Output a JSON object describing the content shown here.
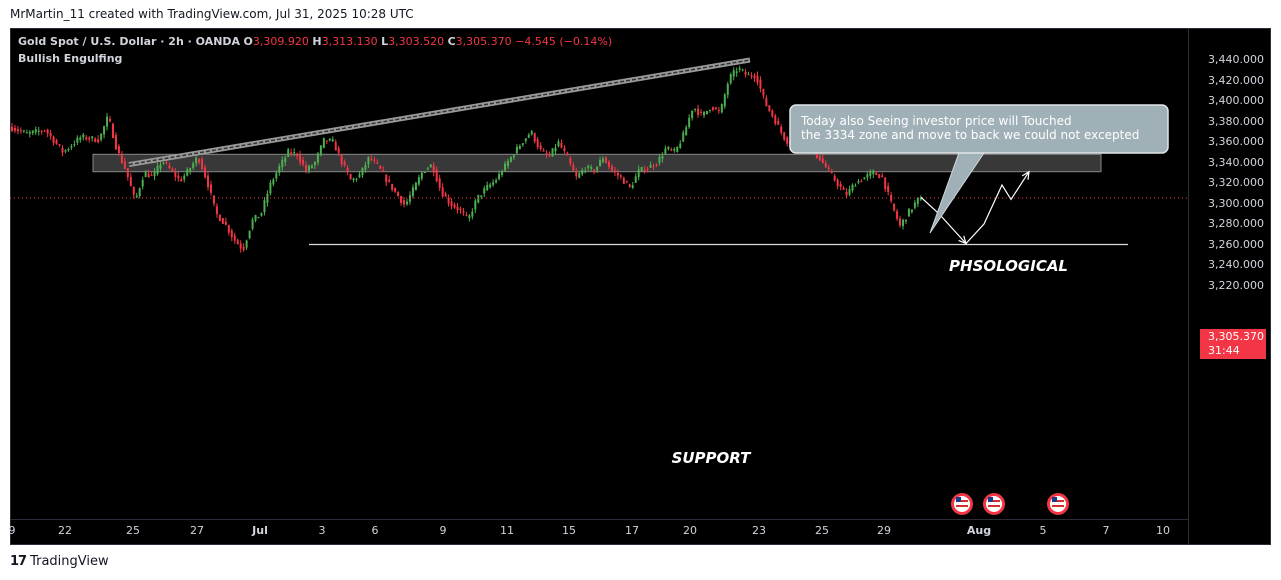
{
  "caption": "MrMartin_11 created with TradingView.com, Jul 31, 2025 10:28 UTC",
  "header": {
    "title": "Gold Spot / U.S. Dollar · 2h · OANDA",
    "o_label": "O",
    "o_value": "3,309.920",
    "h_label": "H",
    "h_value": "3,313.130",
    "l_label": "L",
    "l_value": "3,303.520",
    "c_label": "C",
    "c_value": "3,305.370",
    "change": "−4.545 (−0.14%)",
    "indicator": "Bullish Engulfing"
  },
  "price_tag": {
    "price": "3,305.370",
    "countdown": "31:44"
  },
  "annotations": {
    "callout": "Today also Seeing investor price will Touched the 3334 zone and move to back we could not excepted",
    "zone_label": "PHSOLOGICAL",
    "support_label": "SUPPORT"
  },
  "brand": {
    "logo": "17",
    "name": "TradingView"
  },
  "colors": {
    "up": "#26a69a",
    "up_candle": "#4caf50",
    "down": "#f23645",
    "background": "#000000",
    "text": "#d1d4dc"
  },
  "chart_data": {
    "type": "candlestick",
    "symbol": "XAUUSD",
    "timeframe": "2h",
    "yticks": [
      "3,440.000",
      "3,420.000",
      "3,400.000",
      "3,380.000",
      "3,360.000",
      "3,340.000",
      "3,320.000",
      "3,300.000",
      "3,280.000",
      "3,260.000",
      "3,240.000",
      "3,220.000"
    ],
    "xticks": [
      "9",
      "22",
      "25",
      "27",
      "Jul",
      "3",
      "6",
      "9",
      "11",
      "15",
      "17",
      "20",
      "23",
      "25",
      "29",
      "Aug",
      "5",
      "7",
      "10"
    ],
    "ylim": [
      3215,
      3452
    ],
    "price_path": [
      [
        0,
        3375
      ],
      [
        2,
        3368
      ],
      [
        4,
        3372
      ],
      [
        6,
        3350
      ],
      [
        8,
        3365
      ],
      [
        10,
        3362
      ],
      [
        11,
        3385
      ],
      [
        12,
        3352
      ],
      [
        13,
        3332
      ],
      [
        14,
        3302
      ],
      [
        15,
        3330
      ],
      [
        16,
        3326
      ],
      [
        17,
        3342
      ],
      [
        18,
        3332
      ],
      [
        19,
        3322
      ],
      [
        20,
        3333
      ],
      [
        21,
        3346
      ],
      [
        22,
        3322
      ],
      [
        23,
        3290
      ],
      [
        24,
        3280
      ],
      [
        25,
        3265
      ],
      [
        26,
        3255
      ],
      [
        27,
        3283
      ],
      [
        28,
        3290
      ],
      [
        29,
        3318
      ],
      [
        30,
        3335
      ],
      [
        31,
        3350
      ],
      [
        32,
        3348
      ],
      [
        33,
        3332
      ],
      [
        34,
        3340
      ],
      [
        35,
        3362
      ],
      [
        36,
        3360
      ],
      [
        37,
        3340
      ],
      [
        38,
        3322
      ],
      [
        39,
        3328
      ],
      [
        40,
        3345
      ],
      [
        41,
        3336
      ],
      [
        42,
        3322
      ],
      [
        43,
        3310
      ],
      [
        44,
        3298
      ],
      [
        45,
        3315
      ],
      [
        46,
        3332
      ],
      [
        47,
        3338
      ],
      [
        48,
        3312
      ],
      [
        49,
        3300
      ],
      [
        50,
        3294
      ],
      [
        51,
        3284
      ],
      [
        52,
        3305
      ],
      [
        53,
        3315
      ],
      [
        54,
        3322
      ],
      [
        55,
        3335
      ],
      [
        56,
        3348
      ],
      [
        57,
        3360
      ],
      [
        58,
        3370
      ],
      [
        59,
        3352
      ],
      [
        60,
        3345
      ],
      [
        61,
        3360
      ],
      [
        62,
        3345
      ],
      [
        63,
        3325
      ],
      [
        64,
        3335
      ],
      [
        65,
        3332
      ],
      [
        66,
        3345
      ],
      [
        67,
        3332
      ],
      [
        68,
        3325
      ],
      [
        69,
        3315
      ],
      [
        70,
        3332
      ],
      [
        71,
        3335
      ],
      [
        72,
        3340
      ],
      [
        73,
        3354
      ],
      [
        74,
        3350
      ],
      [
        75,
        3368
      ],
      [
        76,
        3395
      ],
      [
        77,
        3385
      ],
      [
        78,
        3395
      ],
      [
        79,
        3388
      ],
      [
        80,
        3422
      ],
      [
        81,
        3432
      ],
      [
        82,
        3425
      ],
      [
        83,
        3425
      ],
      [
        84,
        3398
      ],
      [
        85,
        3383
      ],
      [
        86,
        3366
      ],
      [
        87,
        3355
      ],
      [
        88,
        3365
      ],
      [
        89,
        3352
      ],
      [
        90,
        3345
      ],
      [
        91,
        3332
      ],
      [
        92,
        3320
      ],
      [
        93,
        3308
      ],
      [
        94,
        3320
      ],
      [
        95,
        3325
      ],
      [
        96,
        3330
      ],
      [
        97,
        3326
      ],
      [
        98,
        3300
      ],
      [
        99,
        3278
      ],
      [
        100,
        3292
      ],
      [
        101,
        3304
      ]
    ],
    "trendline": {
      "from": [
        13,
        3338
      ],
      "to": [
        82,
        3440
      ]
    },
    "zone": {
      "from_index": 9,
      "to_index": 121,
      "y_top": 3348,
      "y_bottom": 3331
    },
    "support": {
      "from_index": 33,
      "to_index": 124,
      "y": 3260
    },
    "projection": [
      [
        101,
        3306
      ],
      [
        103,
        3290
      ],
      [
        106,
        3261
      ],
      [
        108,
        3280
      ],
      [
        110,
        3318
      ],
      [
        111,
        3304
      ],
      [
        113,
        3331
      ]
    ],
    "last_price": 3305.37
  }
}
